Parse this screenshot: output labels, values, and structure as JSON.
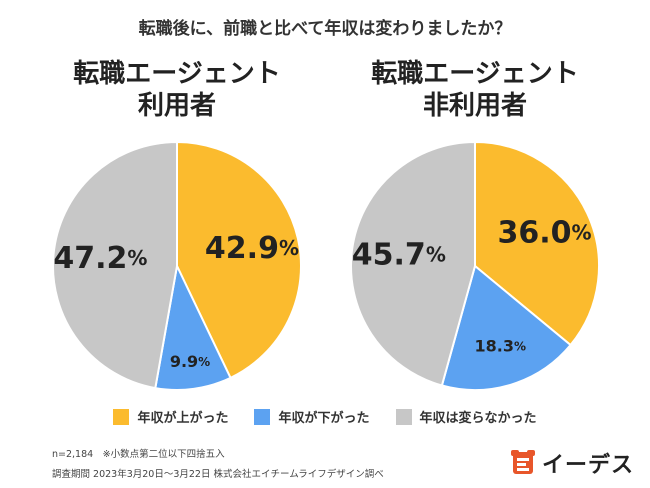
{
  "question": "転職後に、前職と比べて年収は変わりましたか？",
  "chart_data": [
    {
      "type": "pie",
      "title_lines": [
        "転職エージェント",
        "利用者"
      ],
      "labels": [
        "年収が上がった",
        "年収が下がった",
        "年収は変らなかった"
      ],
      "values": [
        42.9,
        9.9,
        47.2
      ],
      "value_labels": [
        "42.9",
        "9.9",
        "47.2"
      ],
      "colors": [
        "#fbbb2e",
        "#5ca2f1",
        "#c7c7c7"
      ]
    },
    {
      "type": "pie",
      "title_lines": [
        "転職エージェント",
        "非利用者"
      ],
      "labels": [
        "年収が上がった",
        "年収が下がった",
        "年収は変らなかった"
      ],
      "values": [
        36.0,
        18.3,
        45.7
      ],
      "value_labels": [
        "36.0",
        "18.3",
        "45.7"
      ],
      "colors": [
        "#fbbb2e",
        "#5ca2f1",
        "#c7c7c7"
      ]
    }
  ],
  "percent_sign": "%",
  "legend": [
    {
      "label": "年収が上がった",
      "color": "#fbbb2e"
    },
    {
      "label": "年収が下がった",
      "color": "#5ca2f1"
    },
    {
      "label": "年収は変らなかった",
      "color": "#c7c7c7"
    }
  ],
  "notes": {
    "sample": "n=2,184　※小数点第二位以下四捨五入",
    "survey": "調査期間 2023年3月20日～3月22日 株式会社エイチームライフデザイン調べ"
  },
  "logo": {
    "text": "イーデス",
    "color": "#e8562a"
  }
}
